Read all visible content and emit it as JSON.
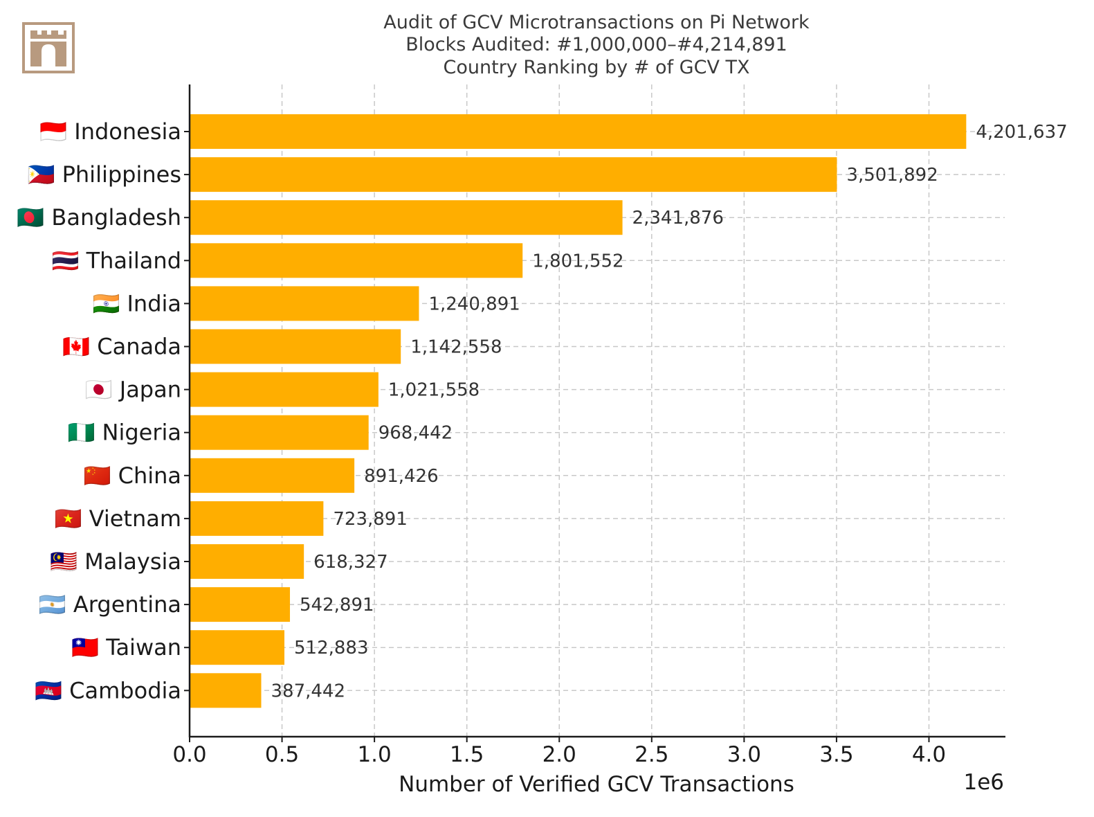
{
  "logo": {
    "icon": "castle-gate-icon",
    "color": "#b89a7f"
  },
  "chart_data": {
    "type": "bar",
    "orientation": "horizontal",
    "title_lines": [
      "Audit of GCV Microtransactions on Pi Network",
      "Blocks Audited: #1,000,000–#4,214,891",
      "Country Ranking by # of GCV TX"
    ],
    "categories": [
      "🇮🇩 Indonesia",
      "🇵🇭 Philippines",
      "🇧🇩 Bangladesh",
      "🇹🇭 Thailand",
      "🇮🇳 India",
      "🇨🇦 Canada",
      "🇯🇵 Japan",
      "🇳🇬 Nigeria",
      "🇨🇳 China",
      "🇻🇳 Vietnam",
      "🇲🇾 Malaysia",
      "🇦🇷 Argentina",
      "🇹🇼 Taiwan",
      "🇰🇭 Cambodia"
    ],
    "values": [
      4201637,
      3501892,
      2341876,
      1801552,
      1240891,
      1142558,
      1021558,
      968442,
      891426,
      723891,
      618327,
      542891,
      512883,
      387442
    ],
    "value_labels": [
      "4,201,637",
      "3,501,892",
      "2,341,876",
      "1,801,552",
      "1,240,891",
      "1,142,558",
      "1,021,558",
      "968,442",
      "891,426",
      "723,891",
      "618,327",
      "542,891",
      "512,883",
      "387,442"
    ],
    "xlabel": "Number of Verified GCV Transactions",
    "x_offset_text": "1e6",
    "xlim": [
      0,
      4410000
    ],
    "x_ticks": [
      0,
      500000,
      1000000,
      1500000,
      2000000,
      2500000,
      3000000,
      3500000,
      4000000
    ],
    "x_tick_labels": [
      "0.0",
      "0.5",
      "1.0",
      "1.5",
      "2.0",
      "2.5",
      "3.0",
      "3.5",
      "4.0"
    ],
    "grid": true,
    "grid_style": "dashed",
    "bar_color": "#ffae00"
  }
}
